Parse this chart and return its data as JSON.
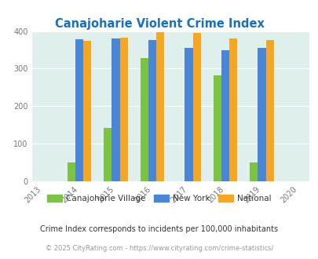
{
  "title": "Canajoharie Violent Crime Index",
  "years": [
    2013,
    2014,
    2015,
    2016,
    2017,
    2018,
    2019,
    2020
  ],
  "data_years": [
    2014,
    2015,
    2016,
    2017,
    2018,
    2019
  ],
  "canajoharie": [
    50,
    142,
    328,
    0,
    283,
    50
  ],
  "new_york": [
    379,
    381,
    376,
    356,
    350,
    356
  ],
  "national": [
    375,
    383,
    398,
    394,
    381,
    377
  ],
  "color_canajoharie": "#7cc243",
  "color_new_york": "#4a86d8",
  "color_national": "#f5a623",
  "bg_color": "#dff0ec",
  "title_color": "#1a6fba",
  "legend_label_canajoharie": "Canajoharie Village",
  "legend_label_ny": "New York",
  "legend_label_national": "National",
  "footnote1": "Crime Index corresponds to incidents per 100,000 inhabitants",
  "footnote2": "© 2025 CityRating.com - https://www.cityrating.com/crime-statistics/",
  "ylim": [
    0,
    400
  ],
  "yticks": [
    0,
    100,
    200,
    300,
    400
  ],
  "bar_width": 0.22
}
